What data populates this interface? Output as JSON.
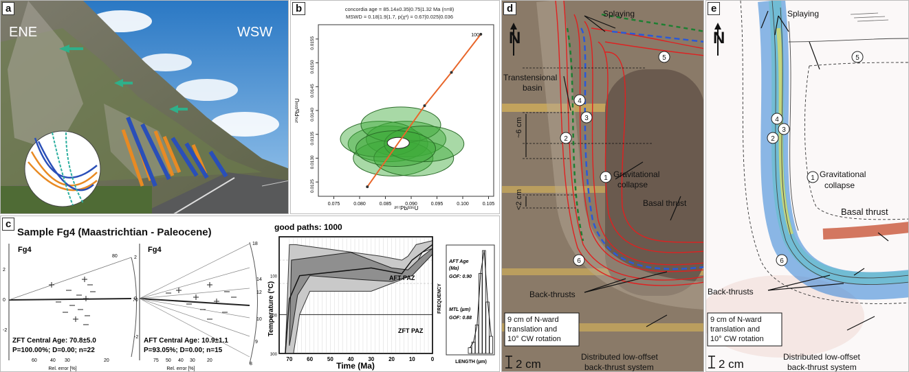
{
  "figure": {
    "panels": {
      "a": {
        "label": "a",
        "left_dir": "ENE",
        "right_dir": "WSW"
      },
      "b": {
        "label": "b",
        "header_line1": "concordia age = 85.14±0.35|0.75|1.32 Ma (n=8)",
        "header_line2": "MSWD = 0.18|1.9|1.7, p(χ²) = 0.67|0.025|0.036",
        "ylabel": "²⁰⁶Pb/²³⁸U",
        "xlabel": "²⁰⁷Pb/²³⁵U",
        "age_mark": "100"
      },
      "c": {
        "label": "c",
        "title": "Sample Fg4 (Maastrichtian - Paleocene)",
        "radial1": {
          "sample": "Fg4",
          "age_line": "ZFT Central Age: 70.8±5.0",
          "stats_line": "P=100.00%; D=0.00; n=22",
          "xaxis": "Rel. error [%]"
        },
        "radial2": {
          "sample": "Fg4",
          "age_line": "AFT Central Age: 10.9±1.1",
          "stats_line": "P=93.05%; D=0.00; n=15",
          "xaxis": "Rel. error [%]"
        },
        "thermal": {
          "title": "good paths: 1000",
          "xlabel": "Time (Ma)",
          "ylabel": "Temperature (°C)",
          "aft_paz": "AFT PAZ",
          "zft_paz": "ZFT PAZ"
        },
        "hist": {
          "ylabel": "FREQUENCY",
          "xlabel": "LENGTH (µm)",
          "aft_age": "AFT Age",
          "aft_age_unit": "(Ma)",
          "gof1": "GOF: 0.90",
          "mtl": "MTL (µm)",
          "gof2": "GOF: 0.88"
        }
      },
      "d": {
        "label": "d",
        "splaying": "Splaying",
        "transtensional": "Transtensional",
        "basin": "basin",
        "six_cm": "~6 cm",
        "two_cm": "<2 cm",
        "grav1": "Gravitational",
        "grav2": "collapse",
        "basal_thrust": "Basal thrust",
        "back_thrusts": "Back-thrusts",
        "translation1": "9 cm of N-ward",
        "translation2": "translation and",
        "translation3": "10° CW rotation",
        "scale": "2 cm",
        "distributed1": "Distributed low-offset",
        "distributed2": "back-thrust system",
        "north": "N"
      },
      "e": {
        "label": "e",
        "splaying": "Splaying",
        "grav1": "Gravitational",
        "grav2": "collapse",
        "basal_thrust": "Basal thrust",
        "back_thrusts": "Back-thrusts",
        "translation1": "9 cm of N-ward",
        "translation2": "translation and",
        "translation3": "10° CW rotation",
        "scale": "2 cm",
        "distributed1": "Distributed low-offset",
        "distributed2": "back-thrust system",
        "north": "N"
      }
    }
  },
  "chart_data": [
    {
      "type": "scatter",
      "panel": "b",
      "title": "concordia age = 85.14±0.35|0.75|1.32 Ma (n=8)",
      "xlabel": "²⁰⁷Pb/²³⁵U",
      "ylabel": "²⁰⁶Pb/²³⁸U",
      "xlim": [
        0.072,
        0.106
      ],
      "ylim": [
        0.0122,
        0.0158
      ],
      "xticks": [
        0.075,
        0.08,
        0.085,
        0.09,
        0.095,
        0.1,
        0.105
      ],
      "yticks": [
        0.0125,
        0.013,
        0.0135,
        0.014,
        0.0145,
        0.015,
        0.0155
      ],
      "concordia": [
        [
          0.0815,
          0.0124
        ],
        [
          0.0926,
          0.0141
        ],
        [
          0.0978,
          0.0148
        ],
        [
          0.1035,
          0.0156
        ]
      ],
      "age_marks": [
        {
          "x": 0.1035,
          "y": 0.0156,
          "label": "100"
        }
      ],
      "ellipses": [
        {
          "x": 0.0855,
          "y": 0.0133
        },
        {
          "x": 0.089,
          "y": 0.0134
        },
        {
          "x": 0.0865,
          "y": 0.013
        },
        {
          "x": 0.084,
          "y": 0.0134
        },
        {
          "x": 0.0905,
          "y": 0.013
        },
        {
          "x": 0.088,
          "y": 0.0137
        },
        {
          "x": 0.0925,
          "y": 0.0133
        },
        {
          "x": 0.087,
          "y": 0.0132
        }
      ],
      "concordia_point": {
        "x": 0.0875,
        "y": 0.01332
      }
    },
    {
      "type": "line",
      "panel": "c-thermal",
      "title": "good paths: 1000",
      "xlabel": "Time (Ma)",
      "ylabel": "Temperature (°C)",
      "xlim": [
        75,
        0
      ],
      "ylim": [
        300,
        0
      ],
      "xticks": [
        70,
        60,
        50,
        40,
        30,
        20,
        10,
        0
      ],
      "yticks": [
        100,
        200,
        300
      ],
      "envelope_outer": [
        [
          72,
          300
        ],
        [
          70,
          20
        ],
        [
          67,
          20
        ],
        [
          25,
          50
        ],
        [
          15,
          60
        ],
        [
          12,
          50
        ],
        [
          8,
          20
        ],
        [
          0,
          10
        ],
        [
          0,
          30
        ],
        [
          5,
          40
        ],
        [
          10,
          90
        ],
        [
          15,
          110
        ],
        [
          20,
          120
        ],
        [
          30,
          140
        ],
        [
          60,
          140
        ],
        [
          65,
          200
        ],
        [
          68,
          300
        ]
      ],
      "envelope_inner": [
        [
          70,
          280
        ],
        [
          69,
          60
        ],
        [
          40,
          40
        ],
        [
          20,
          80
        ],
        [
          12,
          85
        ],
        [
          5,
          50
        ],
        [
          0,
          30
        ],
        [
          0,
          45
        ],
        [
          10,
          100
        ],
        [
          20,
          115
        ],
        [
          35,
          110
        ],
        [
          60,
          100
        ],
        [
          66,
          150
        ],
        [
          69,
          250
        ]
      ],
      "best_path": [
        [
          72,
          300
        ],
        [
          70,
          160
        ],
        [
          65,
          100
        ],
        [
          30,
          80
        ],
        [
          15,
          95
        ],
        [
          10,
          60
        ],
        [
          0,
          20
        ]
      ]
    },
    {
      "type": "bar",
      "panel": "c-hist",
      "xlabel": "LENGTH (µm)",
      "ylabel": "FREQUENCY",
      "categories": [
        10,
        11,
        12,
        13,
        14,
        15,
        16
      ],
      "values": [
        1,
        2,
        5,
        14,
        18,
        9,
        3
      ]
    }
  ]
}
